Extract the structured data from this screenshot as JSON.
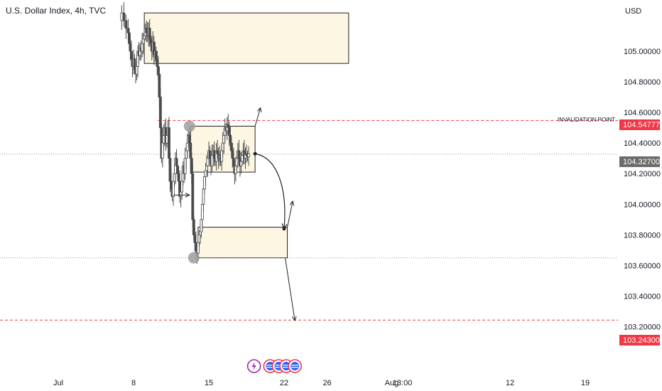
{
  "header": {
    "title": "U.S. Dollar Index, 4h, TVC"
  },
  "price_axis": {
    "unit": "USD"
  },
  "colors": {
    "candle": "#4a4a4a",
    "zone_fill": "#fdf6e3",
    "zone_stroke": "#222222",
    "invalidation_line": "#f23645",
    "current_tag": "#6b6b6b",
    "dotted": "#9e9e9e",
    "marker": "#9e9e9e",
    "event_flag": "#f23645",
    "event_flag_bg": "#2962ff",
    "event_bolt": "#9c27b0"
  },
  "annotations": {
    "invalidation_label": "INVALIDATION POINT",
    "invalidation_price": "104.54777",
    "current_price": "104.32700",
    "target_price": "103.24300"
  },
  "chart_data": {
    "type": "candlestick",
    "title": "U.S. Dollar Index, 4h, TVC",
    "ylabel": "USD",
    "ylim": [
      103.2,
      105.3
    ],
    "y_ticks": [
      "105.00000",
      "104.80000",
      "104.60000",
      "104.40000",
      "104.20000",
      "104.00000",
      "103.80000",
      "103.60000",
      "103.40000",
      "103.20000"
    ],
    "x_ticks": [
      "Jul",
      "8",
      "15",
      "22",
      "26",
      "Aug",
      "13:00",
      "12",
      "19"
    ],
    "x_tick_days": [
      1,
      8,
      15,
      22,
      26,
      32,
      33,
      43,
      50
    ],
    "price_path": [
      [
        6.7,
        105.2
      ],
      [
        6.9,
        105.25
      ],
      [
        7.1,
        105.2
      ],
      [
        7.3,
        105.15
      ],
      [
        7.5,
        105.12
      ],
      [
        7.6,
        105.05
      ],
      [
        7.7,
        105.0
      ],
      [
        7.8,
        104.95
      ],
      [
        7.9,
        104.9
      ],
      [
        8.0,
        104.95
      ],
      [
        8.1,
        104.88
      ],
      [
        8.2,
        104.85
      ],
      [
        8.3,
        104.9
      ],
      [
        8.4,
        105.0
      ],
      [
        8.5,
        104.97
      ],
      [
        8.6,
        105.02
      ],
      [
        8.7,
        105.0
      ],
      [
        8.8,
        105.05
      ],
      [
        8.9,
        105.08
      ],
      [
        9.0,
        105.1
      ],
      [
        9.1,
        105.15
      ],
      [
        9.2,
        105.12
      ],
      [
        9.3,
        105.1
      ],
      [
        9.4,
        105.15
      ],
      [
        9.5,
        105.08
      ],
      [
        9.6,
        105.05
      ],
      [
        9.7,
        105.0
      ],
      [
        9.8,
        105.06
      ],
      [
        9.9,
        104.98
      ],
      [
        10.0,
        105.0
      ],
      [
        10.1,
        104.95
      ],
      [
        10.2,
        104.9
      ],
      [
        10.3,
        104.85
      ],
      [
        10.4,
        104.7
      ],
      [
        10.5,
        104.5
      ],
      [
        10.6,
        104.3
      ],
      [
        10.7,
        104.4
      ],
      [
        10.8,
        104.45
      ],
      [
        10.9,
        104.5
      ],
      [
        11.0,
        104.4
      ],
      [
        11.1,
        104.45
      ],
      [
        11.2,
        104.5
      ],
      [
        11.3,
        104.3
      ],
      [
        11.4,
        104.15
      ],
      [
        11.5,
        104.1
      ],
      [
        11.6,
        104.05
      ],
      [
        11.7,
        104.15
      ],
      [
        11.8,
        104.2
      ],
      [
        11.9,
        104.3
      ],
      [
        12.0,
        104.25
      ],
      [
        12.1,
        104.2
      ],
      [
        12.2,
        104.15
      ],
      [
        12.3,
        104.05
      ],
      [
        12.4,
        104.08
      ],
      [
        12.5,
        104.15
      ],
      [
        12.6,
        104.25
      ],
      [
        12.7,
        104.2
      ],
      [
        12.8,
        104.3
      ],
      [
        12.9,
        104.35
      ],
      [
        13.0,
        104.4
      ],
      [
        13.1,
        104.45
      ],
      [
        13.2,
        104.4
      ],
      [
        13.3,
        104.3
      ],
      [
        13.4,
        104.2
      ],
      [
        13.5,
        103.9
      ],
      [
        13.6,
        103.8
      ],
      [
        13.7,
        103.75
      ],
      [
        13.8,
        103.7
      ],
      [
        13.9,
        103.68
      ],
      [
        14.0,
        103.75
      ],
      [
        14.1,
        103.8
      ],
      [
        14.2,
        103.82
      ],
      [
        14.3,
        103.9
      ],
      [
        14.4,
        104.0
      ],
      [
        14.5,
        104.1
      ],
      [
        14.6,
        104.18
      ],
      [
        14.7,
        104.22
      ],
      [
        14.8,
        104.25
      ],
      [
        14.9,
        104.3
      ],
      [
        15.0,
        104.35
      ],
      [
        15.1,
        104.3
      ],
      [
        15.2,
        104.25
      ],
      [
        15.3,
        104.32
      ],
      [
        15.4,
        104.35
      ],
      [
        15.5,
        104.3
      ],
      [
        15.6,
        104.28
      ],
      [
        15.7,
        104.35
      ],
      [
        15.8,
        104.33
      ],
      [
        15.9,
        104.3
      ],
      [
        16.0,
        104.32
      ],
      [
        16.1,
        104.28
      ],
      [
        16.2,
        104.35
      ],
      [
        16.3,
        104.4
      ],
      [
        16.4,
        104.45
      ],
      [
        16.5,
        104.5
      ],
      [
        16.6,
        104.48
      ],
      [
        16.7,
        104.52
      ],
      [
        16.8,
        104.5
      ],
      [
        16.9,
        104.45
      ],
      [
        17.0,
        104.4
      ],
      [
        17.1,
        104.35
      ],
      [
        17.2,
        104.3
      ],
      [
        17.3,
        104.25
      ],
      [
        17.4,
        104.2
      ],
      [
        17.5,
        104.25
      ],
      [
        17.6,
        104.3
      ],
      [
        17.7,
        104.35
      ],
      [
        17.8,
        104.3
      ],
      [
        17.9,
        104.25
      ],
      [
        18.0,
        104.28
      ],
      [
        18.1,
        104.32
      ],
      [
        18.2,
        104.35
      ],
      [
        18.3,
        104.3
      ],
      [
        18.4,
        104.33
      ],
      [
        18.5,
        104.32
      ],
      [
        18.6,
        104.31
      ],
      [
        18.7,
        104.33
      ]
    ],
    "zones": [
      {
        "price_top": 105.25,
        "price_bottom": 104.92,
        "day_start": 9.0,
        "day_end": 28.0
      },
      {
        "price_top": 104.51,
        "price_bottom": 104.21,
        "day_start": 13.3,
        "day_end": 19.3
      },
      {
        "price_top": 103.85,
        "price_bottom": 103.65,
        "day_start": 14.0,
        "day_end": 22.3
      }
    ],
    "invalidation_level": 104.54777,
    "target_level": 103.243,
    "current_level": 104.327,
    "low_dotted_level": 103.65,
    "markers": [
      {
        "day": 13.2,
        "price": 104.51
      },
      {
        "day": 13.6,
        "price": 103.65
      }
    ],
    "projection": {
      "from_day": 19.3,
      "from_price": 104.33,
      "to_day": 22.0,
      "to_price": 103.84
    },
    "arrows": [
      {
        "from_day": 19.3,
        "from_price": 104.51,
        "to_day": 19.8,
        "to_price": 104.63
      },
      {
        "from_day": 22.3,
        "from_price": 103.85,
        "to_day": 22.8,
        "to_price": 104.02
      },
      {
        "from_day": 22.1,
        "from_price": 103.65,
        "to_day": 23.0,
        "to_price": 103.24
      },
      {
        "from_day": 11.7,
        "from_price": 104.06,
        "to_day": 13.2,
        "to_price": 104.06
      }
    ],
    "events": [
      {
        "day": 19.2,
        "kind": "bolt"
      },
      {
        "day": 20.7,
        "kind": "flag"
      },
      {
        "day": 21.5,
        "kind": "flag"
      },
      {
        "day": 22.2,
        "kind": "flag"
      },
      {
        "day": 23.0,
        "kind": "flag"
      }
    ]
  }
}
